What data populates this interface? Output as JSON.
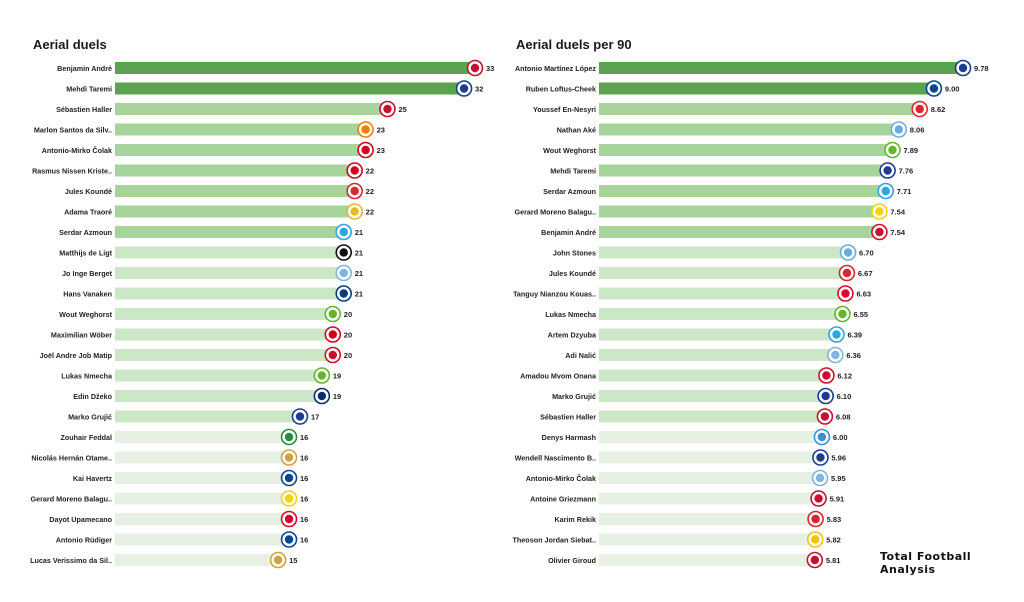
{
  "watermark": "Total Football Analysis",
  "colors": {
    "dark": "#5aa34f",
    "mid": "#a6d49b",
    "light": "#cce7c5",
    "pale": "#e6f1e3",
    "text": "#222222"
  },
  "chart_data": [
    {
      "type": "bar",
      "title": "Aerial duels",
      "xlabel": "",
      "ylabel": "",
      "categories": [
        "Benjamin André",
        "Mehdi Taremi",
        "Sébastien Haller",
        "Marlon Santos da Silv..",
        "Antonio-Mirko Čolak",
        "Rasmus Nissen Kriste..",
        "Jules Koundé",
        "Adama Traoré",
        "Serdar Azmoun",
        "Matthijs de Ligt",
        "Jo Inge Berget",
        "Hans Vanaken",
        "Wout Weghorst",
        "Maximilian Wöber",
        "Joël Andre Job Matip",
        "Lukas Nmecha",
        "Edin Džeko",
        "Marko Grujić",
        "Zouhair Feddal",
        "Nicolás Hernán Otame..",
        "Kai Havertz",
        "Gerard Moreno Balagu..",
        "Dayot Upamecano",
        "Antonio Rüdiger",
        "Lucas Verissimo da Sil.."
      ],
      "values": [
        33,
        32,
        25,
        23,
        23,
        22,
        22,
        22,
        21,
        21,
        21,
        21,
        20,
        20,
        20,
        19,
        19,
        17,
        16,
        16,
        16,
        16,
        16,
        16,
        15
      ],
      "value_labels": [
        "33",
        "32",
        "25",
        "23",
        "23",
        "22",
        "22",
        "22",
        "21",
        "21",
        "21",
        "21",
        "20",
        "20",
        "20",
        "19",
        "19",
        "17",
        "16",
        "16",
        "16",
        "16",
        "16",
        "16",
        "15"
      ],
      "icons": [
        "lille-badge-icon",
        "porto-badge-icon",
        "ajax-badge-icon",
        "shakhtar-badge-icon",
        "salzburg-badge-icon",
        "salzburg-badge-icon",
        "sevilla-badge-icon",
        "sheriff-badge-icon",
        "zenit-badge-icon",
        "juventus-badge-icon",
        "malmo-badge-icon",
        "club-brugge-badge-icon",
        "wolfsburg-badge-icon",
        "salzburg-badge-icon",
        "liverpool-badge-icon",
        "wolfsburg-badge-icon",
        "inter-badge-icon",
        "porto-badge-icon",
        "sporting-badge-icon",
        "benfica-badge-icon",
        "chelsea-badge-icon",
        "villarreal-badge-icon",
        "bayern-badge-icon",
        "chelsea-badge-icon",
        "benfica-badge-icon"
      ],
      "xlim": [
        0,
        33
      ],
      "grid": false
    },
    {
      "type": "bar",
      "title": "Aerial duels per 90",
      "xlabel": "",
      "ylabel": "",
      "categories": [
        "Antonio Martínez López",
        "Ruben Loftus-Cheek",
        "Youssef En-Nesyri",
        "Nathan Aké",
        "Wout Weghorst",
        "Mehdi Taremi",
        "Serdar Azmoun",
        "Gerard Moreno Balagu..",
        "Benjamin André",
        "John Stones",
        "Jules Koundé",
        "Tanguy Nianzou Kouas..",
        "Lukas Nmecha",
        "Artem Dzyuba",
        "Adi Nalić",
        "Amadou Mvom Onana",
        "Marko Grujić",
        "Sébastien Haller",
        "Denys Harmash",
        "Wendell Nascimento B..",
        "Antonio-Mirko Čolak",
        "Antoine Griezmann",
        "Karim Rekik",
        "Theoson Jordan Siebat..",
        "Olivier Giroud"
      ],
      "values": [
        9.78,
        9.0,
        8.62,
        8.06,
        7.89,
        7.76,
        7.71,
        7.54,
        7.54,
        6.7,
        6.67,
        6.63,
        6.55,
        6.39,
        6.36,
        6.12,
        6.1,
        6.08,
        6.0,
        5.96,
        5.95,
        5.91,
        5.83,
        5.82,
        5.81
      ],
      "value_labels": [
        "9.78",
        "9.00",
        "8.62",
        "8.06",
        "7.89",
        "7.76",
        "7.71",
        "7.54",
        "7.54",
        "6.70",
        "6.67",
        "6.63",
        "6.55",
        "6.39",
        "6.36",
        "6.12",
        "6.10",
        "6.08",
        "6.00",
        "5.96",
        "5.95",
        "5.91",
        "5.83",
        "5.82",
        "5.81"
      ],
      "icons": [
        "porto-badge-icon",
        "chelsea-badge-icon",
        "sevilla-badge-icon",
        "man-city-badge-icon",
        "wolfsburg-badge-icon",
        "porto-badge-icon",
        "zenit-badge-icon",
        "villarreal-badge-icon",
        "lille-badge-icon",
        "man-city-badge-icon",
        "sevilla-badge-icon",
        "bayern-badge-icon",
        "wolfsburg-badge-icon",
        "zenit-badge-icon",
        "malmo-badge-icon",
        "lille-badge-icon",
        "porto-badge-icon",
        "ajax-badge-icon",
        "dynamo-kyiv-badge-icon",
        "porto-badge-icon",
        "malmo-badge-icon",
        "atletico-badge-icon",
        "sevilla-badge-icon",
        "young-boys-badge-icon",
        "milan-badge-icon"
      ],
      "xlim": [
        0,
        9.78
      ],
      "grid": false
    }
  ]
}
